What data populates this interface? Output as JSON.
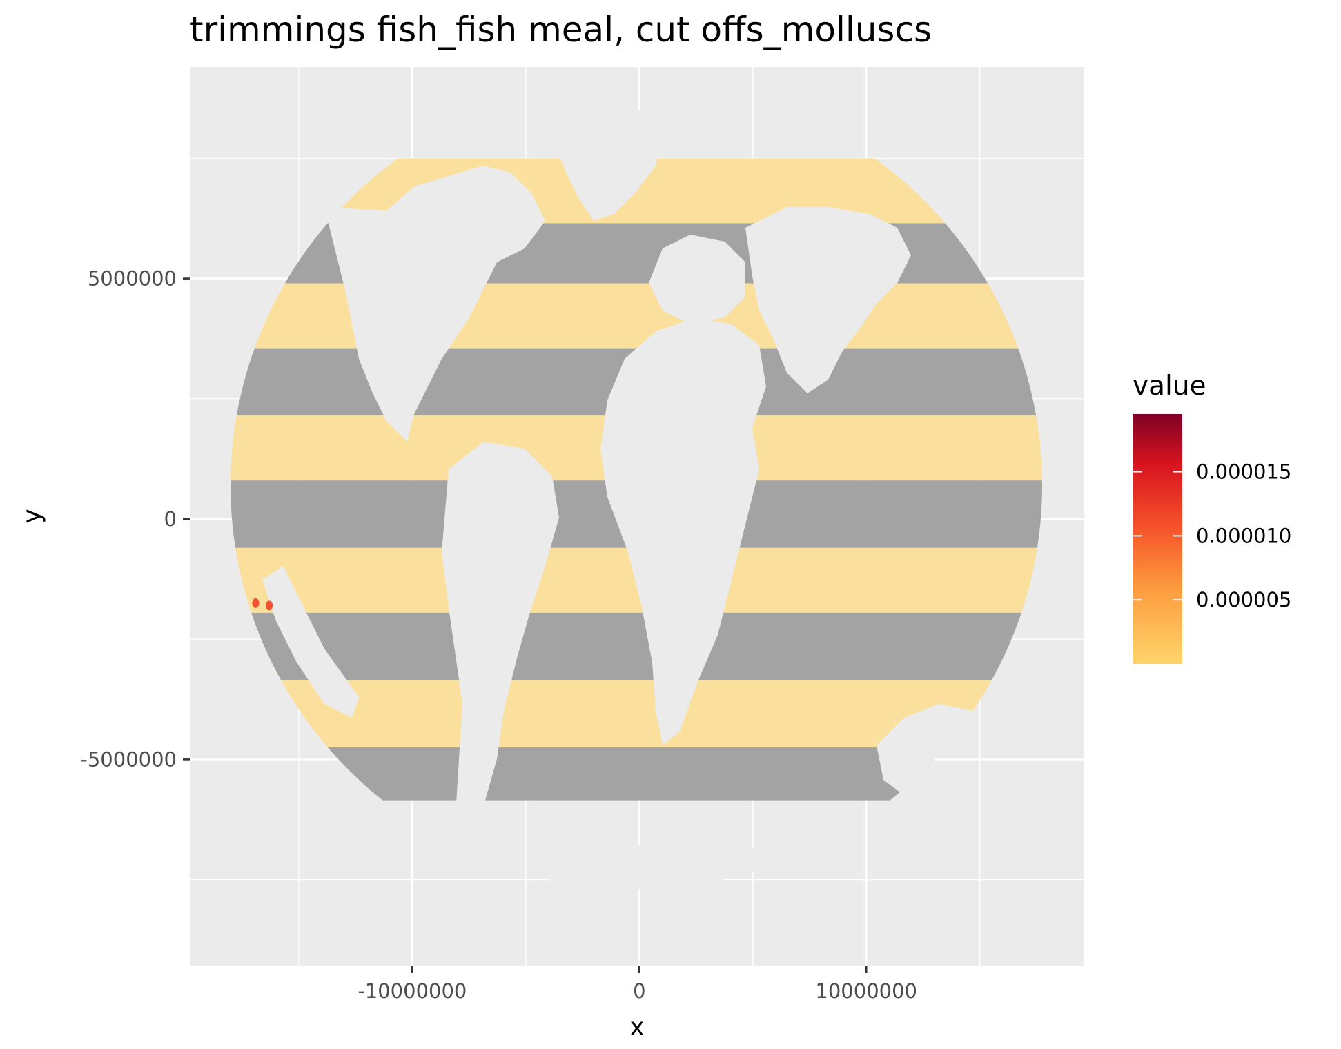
{
  "title": "trimmings fish_fish meal, cut offs_molluscs",
  "colors": {
    "panel": "#ebebeb",
    "grid": "#ffffff",
    "land": "#ebebeb",
    "zero_value_cells": "#a3a3a3",
    "low_value_cells": "#fae09c",
    "scale_low": "#ffd46b",
    "scale_mid": "#f03b20",
    "scale_high": "#800026"
  },
  "chart_data": {
    "type": "heatmap",
    "title": "trimmings fish_fish meal, cut offs_molluscs",
    "xlabel": "x",
    "ylabel": "y",
    "xlim": [
      -19800000,
      19600000
    ],
    "ylim": [
      -9300000,
      9400000
    ],
    "x_ticks": [
      {
        "value": -10000000,
        "label": "-10000000"
      },
      {
        "value": 0,
        "label": "0"
      },
      {
        "value": 10000000,
        "label": "10000000"
      }
    ],
    "y_ticks": [
      {
        "value": 5000000,
        "label": "5000000"
      },
      {
        "value": 0,
        "label": "0"
      },
      {
        "value": -5000000,
        "label": "-5000000"
      }
    ],
    "grid": true,
    "legend": {
      "title": "value",
      "placement": "right",
      "min": 0,
      "max": 1.95e-05,
      "breaks": [
        {
          "value": 5e-06,
          "label": "0.000005"
        },
        {
          "value": 1e-05,
          "label": "0.000010"
        },
        {
          "value": 1.5e-05,
          "label": "0.000015"
        }
      ]
    },
    "bands": [
      {
        "y_from": 7500000,
        "y_to": 6150000,
        "value": 2e-07
      },
      {
        "y_from": 6150000,
        "y_to": 4900000,
        "value": 0
      },
      {
        "y_from": 4900000,
        "y_to": 3550000,
        "value": 2e-07
      },
      {
        "y_from": 3550000,
        "y_to": 2150000,
        "value": 0
      },
      {
        "y_from": 2150000,
        "y_to": 800000,
        "value": 2e-07
      },
      {
        "y_from": 800000,
        "y_to": -600000,
        "value": 0
      },
      {
        "y_from": -600000,
        "y_to": -1950000,
        "value": 2e-07
      },
      {
        "y_from": -1950000,
        "y_to": -3350000,
        "value": 0
      },
      {
        "y_from": -3350000,
        "y_to": -4750000,
        "value": 2e-07
      },
      {
        "y_from": -4750000,
        "y_to": -5850000,
        "value": 0
      }
    ],
    "hotspots": [
      {
        "x": -16900000,
        "y": -1750000,
        "value": 1.5e-05
      },
      {
        "x": -16300000,
        "y": -1800000,
        "value": 1.2e-05
      }
    ]
  }
}
